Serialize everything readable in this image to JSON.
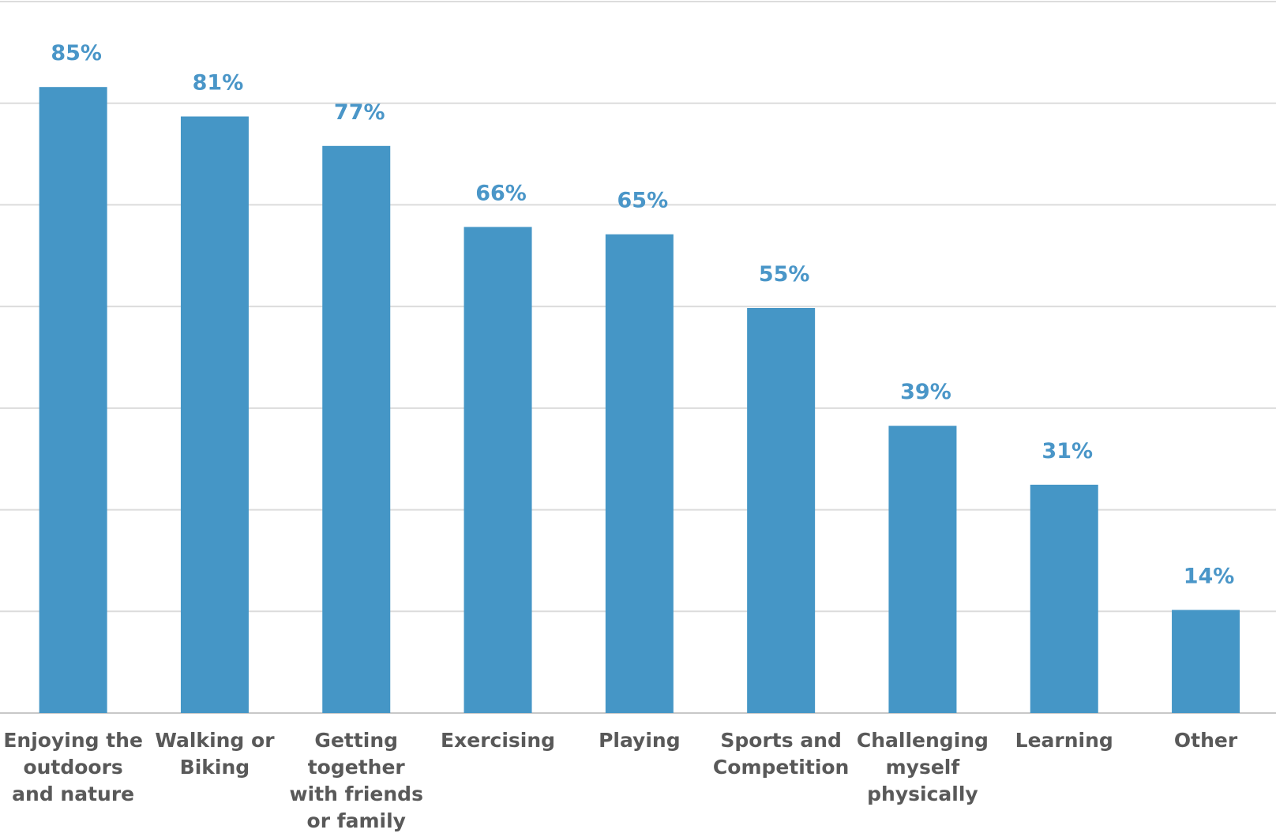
{
  "chart_data": {
    "type": "bar",
    "categories": [
      "Enjoying the outdoors and nature",
      "Walking or Biking",
      "Getting together with friends or family",
      "Exercising",
      "Playing",
      "Sports and Competition",
      "Challenging myself physically",
      "Learning",
      "Other"
    ],
    "values": [
      85,
      81,
      77,
      66,
      65,
      55,
      39,
      31,
      14
    ],
    "value_labels": [
      "85%",
      "81%",
      "77%",
      "66%",
      "65%",
      "55%",
      "39%",
      "31%",
      "14%"
    ],
    "color": "#4596c6",
    "ylim": [
      0,
      96.6
    ],
    "yticks": [
      0,
      13.8,
      27.6,
      41.4,
      55.2,
      69,
      82.8,
      96.6
    ],
    "grid": true
  }
}
